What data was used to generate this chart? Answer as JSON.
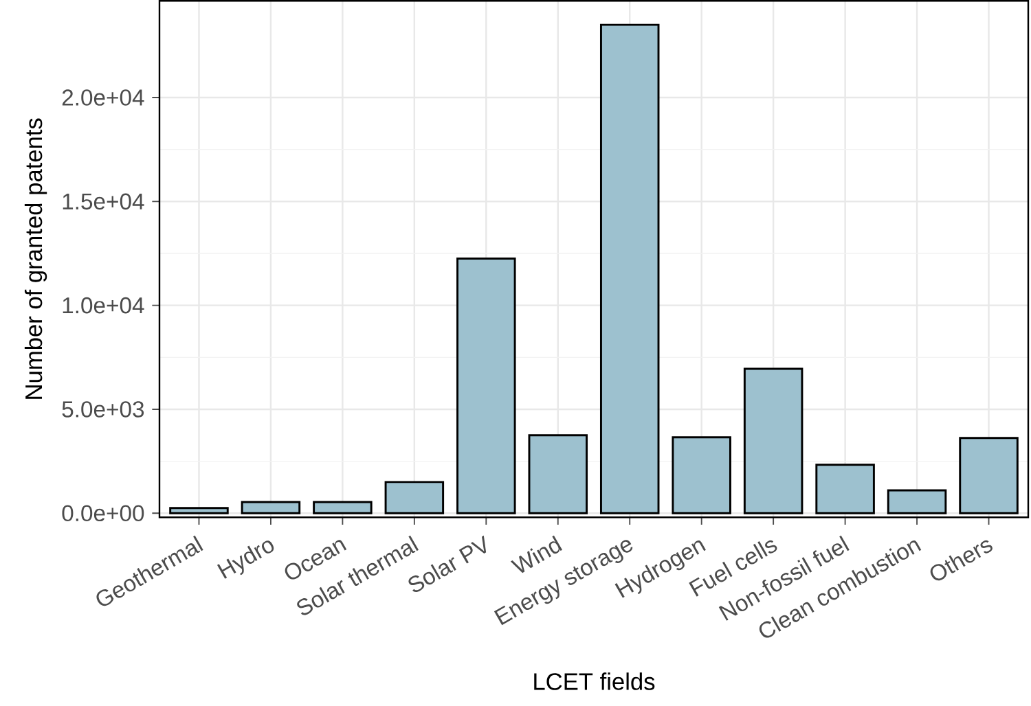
{
  "chart_data": {
    "type": "bar",
    "xlabel": "LCET fields",
    "ylabel": "Number of granted patents",
    "categories": [
      "Geothermal",
      "Hydro",
      "Ocean",
      "Solar thermal",
      "Solar PV",
      "Wind",
      "Energy storage",
      "Hydrogen",
      "Fuel cells",
      "Non-fossil fuel",
      "Clean combustion",
      "Others"
    ],
    "values": [
      250,
      540,
      540,
      1500,
      12250,
      3750,
      23500,
      3650,
      6950,
      2330,
      1100,
      3620
    ],
    "color": "#9dc1cf",
    "ylim": [
      -200,
      24650
    ],
    "yticks": [
      {
        "value": 0,
        "label": "0.0e+00"
      },
      {
        "value": 5000,
        "label": "5.0e+03"
      },
      {
        "value": 10000,
        "label": "1.0e+04"
      },
      {
        "value": 15000,
        "label": "1.5e+04"
      },
      {
        "value": 20000,
        "label": "2.0e+04"
      }
    ],
    "grid": true
  }
}
